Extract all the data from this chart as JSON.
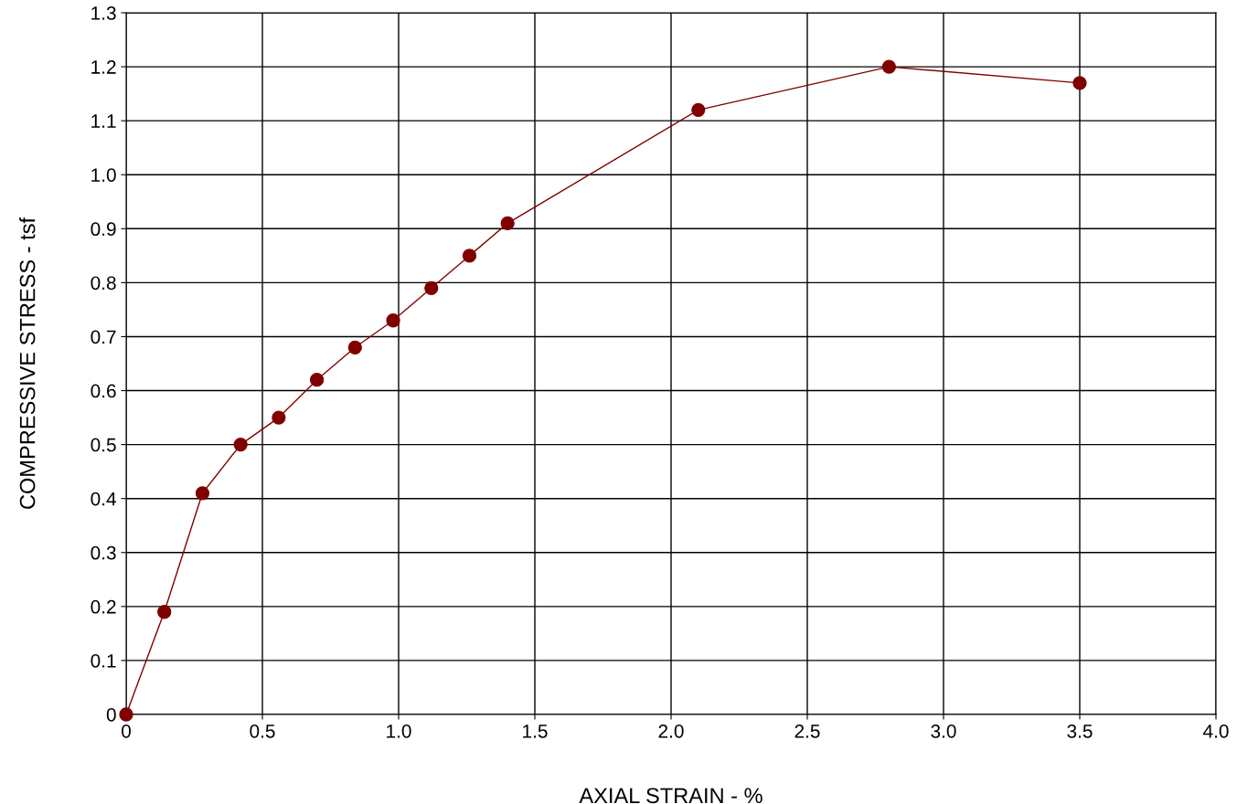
{
  "chart_data": {
    "type": "line",
    "xlabel": "AXIAL STRAIN - %",
    "ylabel": "COMPRESSIVE STRESS - tsf",
    "x": [
      0,
      0.14,
      0.28,
      0.42,
      0.56,
      0.7,
      0.84,
      0.98,
      1.12,
      1.26,
      1.4,
      2.1,
      2.8,
      3.5
    ],
    "series": [
      {
        "color": "#800000",
        "values": [
          0,
          0.19,
          0.41,
          0.5,
          0.55,
          0.62,
          0.68,
          0.73,
          0.79,
          0.85,
          0.91,
          1.12,
          1.2,
          1.17
        ]
      }
    ],
    "marker": "circle",
    "line_style": "solid",
    "grid": true,
    "xlim": [
      0,
      4.0
    ],
    "ylim": [
      0,
      1.3
    ],
    "xticks": [
      0,
      {
        "value": 0.5,
        "label": "0.5"
      },
      {
        "value": 1.0,
        "label": "1.0"
      },
      {
        "value": 1.5,
        "label": "1.5"
      },
      {
        "value": 2.0,
        "label": "2.0"
      },
      {
        "value": 2.5,
        "label": "2.5"
      },
      {
        "value": 3.0,
        "label": "3.0"
      },
      {
        "value": 3.5,
        "label": "3.5"
      },
      {
        "value": 4.0,
        "label": "4.0"
      }
    ],
    "yticks": [
      0,
      {
        "value": 0.1,
        "label": "0.1"
      },
      {
        "value": 0.2,
        "label": "0.2"
      },
      {
        "value": 0.3,
        "label": "0.3"
      },
      {
        "value": 0.4,
        "label": "0.4"
      },
      {
        "value": 0.5,
        "label": "0.5"
      },
      {
        "value": 0.6,
        "label": "0.6"
      },
      {
        "value": 0.7,
        "label": "0.7"
      },
      {
        "value": 0.8,
        "label": "0.8"
      },
      {
        "value": 0.9,
        "label": "0.9"
      },
      {
        "value": 1.0,
        "label": "1.0"
      },
      {
        "value": 1.1,
        "label": "1.1"
      },
      {
        "value": 1.2,
        "label": "1.2"
      },
      {
        "value": 1.3,
        "label": "1.3"
      }
    ]
  }
}
